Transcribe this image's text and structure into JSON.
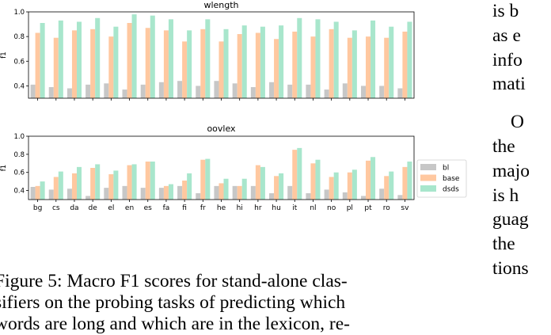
{
  "chart_data": [
    {
      "type": "bar",
      "title": "wlength",
      "ylabel": "f1",
      "ylim": [
        0.3,
        1.0
      ],
      "yticks": [
        "0.4",
        "0.6",
        "0.8",
        "1.0"
      ],
      "show_x_tick_labels": false,
      "categories": [
        "bg",
        "cs",
        "da",
        "de",
        "el",
        "en",
        "es",
        "fa",
        "fi",
        "fr",
        "he",
        "hi",
        "hr",
        "hu",
        "it",
        "nl",
        "no",
        "pl",
        "pt",
        "ro",
        "sv"
      ],
      "series": [
        {
          "name": "bl",
          "color": "#c7c7c7",
          "values": [
            0.41,
            0.39,
            0.38,
            0.41,
            0.42,
            0.37,
            0.41,
            0.43,
            0.44,
            0.4,
            0.44,
            0.42,
            0.39,
            0.43,
            0.41,
            0.41,
            0.37,
            0.42,
            0.4,
            0.4,
            0.38
          ]
        },
        {
          "name": "base",
          "color": "#ffc8a0",
          "values": [
            0.83,
            0.79,
            0.85,
            0.86,
            0.8,
            0.91,
            0.87,
            0.85,
            0.76,
            0.86,
            0.76,
            0.82,
            0.83,
            0.78,
            0.84,
            0.8,
            0.86,
            0.79,
            0.8,
            0.79,
            0.84
          ]
        },
        {
          "name": "dsds",
          "color": "#a8e6cc",
          "values": [
            0.91,
            0.93,
            0.92,
            0.95,
            0.88,
            0.98,
            0.97,
            0.94,
            0.85,
            0.94,
            0.86,
            0.89,
            0.88,
            0.89,
            0.95,
            0.94,
            0.92,
            0.85,
            0.93,
            0.88,
            0.92
          ]
        }
      ]
    },
    {
      "type": "bar",
      "title": "oovlex",
      "ylabel": "f1",
      "ylim": [
        0.3,
        1.0
      ],
      "yticks": [
        "0.4",
        "0.6",
        "0.8",
        "1.0"
      ],
      "show_x_tick_labels": true,
      "legend_position": "right",
      "categories": [
        "bg",
        "cs",
        "da",
        "de",
        "el",
        "en",
        "es",
        "fa",
        "fi",
        "fr",
        "he",
        "hi",
        "hr",
        "hu",
        "it",
        "nl",
        "no",
        "pl",
        "pt",
        "ro",
        "sv"
      ],
      "series": [
        {
          "name": "bl",
          "color": "#c7c7c7",
          "values": [
            0.44,
            0.41,
            0.42,
            0.34,
            0.43,
            0.45,
            0.43,
            0.43,
            0.45,
            0.37,
            0.45,
            0.45,
            0.45,
            0.37,
            0.45,
            0.37,
            0.41,
            0.38,
            0.34,
            0.42,
            0.35
          ]
        },
        {
          "name": "base",
          "color": "#ffc8a0",
          "values": [
            0.45,
            0.55,
            0.59,
            0.65,
            0.58,
            0.68,
            0.72,
            0.45,
            0.51,
            0.74,
            0.48,
            0.45,
            0.68,
            0.56,
            0.85,
            0.7,
            0.55,
            0.6,
            0.73,
            0.56,
            0.66
          ]
        },
        {
          "name": "dsds",
          "color": "#a8e6cc",
          "values": [
            0.5,
            0.61,
            0.66,
            0.69,
            0.62,
            0.69,
            0.72,
            0.47,
            0.59,
            0.75,
            0.53,
            0.53,
            0.66,
            0.59,
            0.87,
            0.74,
            0.6,
            0.63,
            0.77,
            0.61,
            0.72
          ]
        }
      ]
    }
  ],
  "caption": {
    "lines": [
      "Figure 5:  Macro F1 scores for stand-alone clas-",
      "sifiers on the probing tasks of predicting which",
      "words are long and which are in the lexicon, re-"
    ]
  },
  "right_column": {
    "lines": [
      "is b",
      "as e",
      "info",
      "mati",
      "O",
      "the",
      "majo",
      "is h",
      "guag",
      "the",
      "tions"
    ]
  }
}
